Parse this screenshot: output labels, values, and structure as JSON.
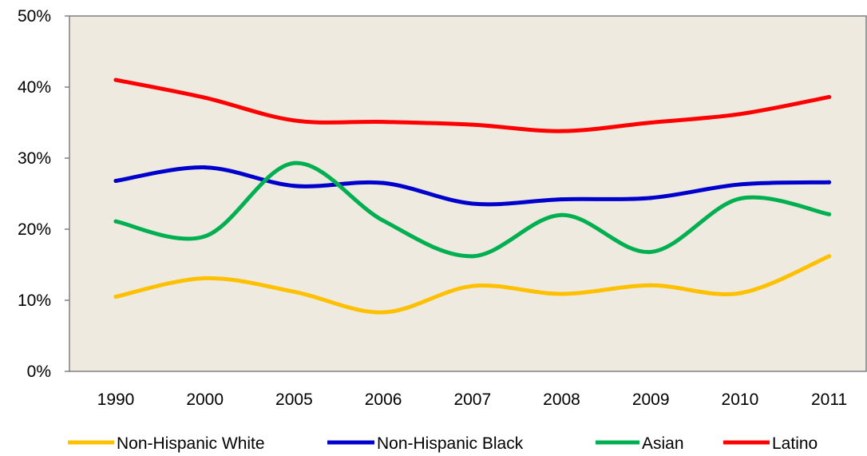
{
  "chart_data": {
    "type": "line",
    "title": "",
    "xlabel": "",
    "ylabel": "",
    "categories": [
      "1990",
      "2000",
      "2005",
      "2006",
      "2007",
      "2008",
      "2009",
      "2010",
      "2011"
    ],
    "y_ticks": [
      "0%",
      "10%",
      "20%",
      "30%",
      "40%",
      "50%"
    ],
    "ylim": [
      0,
      50
    ],
    "grid": false,
    "plot_background": "#EEEAE0",
    "legend_position": "bottom",
    "series": [
      {
        "name": "Non-Hispanic White",
        "color": "#FFC000",
        "values": [
          10.5,
          13.1,
          11.2,
          8.3,
          12.0,
          10.9,
          12.1,
          11.0,
          16.2
        ]
      },
      {
        "name": "Non-Hispanic Black",
        "color": "#0000CC",
        "values": [
          26.8,
          28.7,
          26.1,
          26.5,
          23.6,
          24.2,
          24.4,
          26.3,
          26.6
        ]
      },
      {
        "name": "Asian",
        "color": "#00B050",
        "values": [
          21.1,
          19.0,
          29.3,
          21.2,
          16.2,
          22.0,
          16.8,
          24.3,
          22.1
        ]
      },
      {
        "name": "Latino",
        "color": "#FF0000",
        "values": [
          41.0,
          38.5,
          35.3,
          35.1,
          34.7,
          33.8,
          35.0,
          36.2,
          38.6
        ]
      }
    ]
  }
}
